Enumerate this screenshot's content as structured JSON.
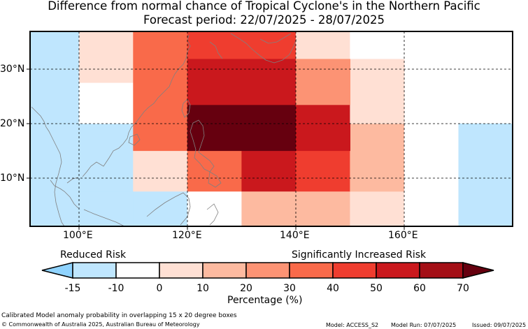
{
  "title": {
    "line1": "Difference from normal chance of Tropical Cyclone's in the Northern Pacific",
    "line2": "Forecast period: 22/07/2025 - 28/07/2025"
  },
  "map": {
    "lon_labels": [
      "100°E",
      "120°E",
      "140°E",
      "160°E"
    ],
    "lat_labels": [
      "30°N",
      "20°N",
      "10°N"
    ],
    "grid_line_color": "#000000",
    "coast_color": "#808080"
  },
  "legend": {
    "reduced_label": "Reduced Risk",
    "increased_label": "Significantly Increased Risk",
    "ticks": [
      "-15",
      "-10",
      "0",
      "10",
      "20",
      "30",
      "40",
      "50",
      "60",
      "70"
    ],
    "colors": [
      "#8fd3fe",
      "#bfe6fe",
      "#ffffff",
      "#ffe0d4",
      "#fdbaa0",
      "#fc9374",
      "#f96a4a",
      "#ef3d2f",
      "#ca181d",
      "#a40f16",
      "#66000f"
    ],
    "xlabel": "Percentage (%)"
  },
  "footer": {
    "description": "Calibrated Model anomaly probability in overlapping 15 x 20 degree boxes",
    "copyright": "© Commonwealth of Australia 2025, Australian Bureau of Meteorology",
    "model": "Model: ACCESS_S2",
    "model_run": "Model Run: 07/07/2025",
    "issued": "Issued: 09/07/2025"
  },
  "chart_data": {
    "type": "heatmap",
    "units": "%",
    "lon_range": [
      91,
      180
    ],
    "lat_range": [
      1,
      37
    ],
    "cells": [
      {
        "lon": [
          91,
          110
        ],
        "lat": [
          1,
          37
        ],
        "value": -15
      },
      {
        "lon": [
          110,
          120
        ],
        "lat": [
          1,
          20
        ],
        "value": -15
      },
      {
        "lon": [
          100,
          110
        ],
        "lat": [
          27.5,
          37
        ],
        "value": 5
      },
      {
        "lon": [
          100,
          110
        ],
        "lat": [
          20,
          27.5
        ],
        "value": -5
      },
      {
        "lon": [
          100,
          110
        ],
        "lat": [
          7.5,
          15
        ],
        "value": -15
      },
      {
        "lon": [
          110,
          120
        ],
        "lat": [
          7.5,
          15
        ],
        "value": 5
      },
      {
        "lon": [
          110,
          120
        ],
        "lat": [
          15,
          37
        ],
        "value": 35
      },
      {
        "lon": [
          120,
          130
        ],
        "lat": [
          1,
          7.5
        ],
        "value": -5
      },
      {
        "lon": [
          130,
          140
        ],
        "lat": [
          1,
          7.5
        ],
        "value": 15
      },
      {
        "lon": [
          140,
          150
        ],
        "lat": [
          1,
          7.5
        ],
        "value": 15
      },
      {
        "lon": [
          150,
          160
        ],
        "lat": [
          1,
          7.5
        ],
        "value": 5
      },
      {
        "lon": [
          160,
          170
        ],
        "lat": [
          1,
          7.5
        ],
        "value": -5
      },
      {
        "lon": [
          120,
          130
        ],
        "lat": [
          7.5,
          15
        ],
        "value": 35
      },
      {
        "lon": [
          130,
          140
        ],
        "lat": [
          7.5,
          15
        ],
        "value": 55
      },
      {
        "lon": [
          140,
          150
        ],
        "lat": [
          7.5,
          15
        ],
        "value": 45
      },
      {
        "lon": [
          150,
          160
        ],
        "lat": [
          7.5,
          20
        ],
        "value": 15
      },
      {
        "lon": [
          160,
          170
        ],
        "lat": [
          7.5,
          37
        ],
        "value": -5
      },
      {
        "lon": [
          120,
          140
        ],
        "lat": [
          15,
          23.5
        ],
        "value": 75
      },
      {
        "lon": [
          140,
          150
        ],
        "lat": [
          15,
          23.5
        ],
        "value": 55
      },
      {
        "lon": [
          150,
          160
        ],
        "lat": [
          20,
          32
        ],
        "value": 5
      },
      {
        "lon": [
          120,
          140
        ],
        "lat": [
          23.5,
          32
        ],
        "value": 55
      },
      {
        "lon": [
          140,
          150
        ],
        "lat": [
          23.5,
          32
        ],
        "value": 25
      },
      {
        "lon": [
          120,
          140
        ],
        "lat": [
          32,
          37
        ],
        "value": 45
      },
      {
        "lon": [
          140,
          150
        ],
        "lat": [
          32,
          37
        ],
        "value": 5
      },
      {
        "lon": [
          150,
          160
        ],
        "lat": [
          32,
          37
        ],
        "value": -5
      },
      {
        "lon": [
          160,
          170
        ],
        "lat": [
          32,
          37
        ],
        "value": -10
      },
      {
        "lon": [
          170,
          180
        ],
        "lat": [
          20,
          37
        ],
        "value": -10
      },
      {
        "lon": [
          170,
          180
        ],
        "lat": [
          1,
          20
        ],
        "value": -15
      }
    ]
  }
}
